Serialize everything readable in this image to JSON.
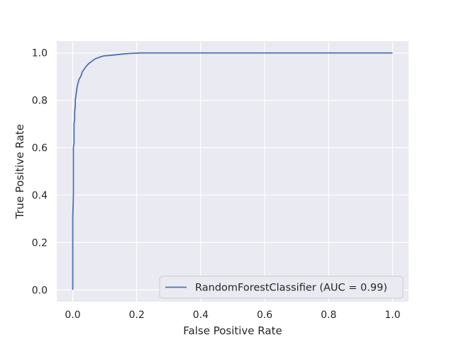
{
  "chart_data": {
    "type": "line",
    "xlabel": "False Positive Rate",
    "ylabel": "True Positive Rate",
    "xlim": [
      -0.05,
      1.05
    ],
    "ylim": [
      -0.05,
      1.05
    ],
    "x_ticks": [
      "0.0",
      "0.2",
      "0.4",
      "0.6",
      "0.8",
      "1.0"
    ],
    "y_ticks": [
      "0.0",
      "0.2",
      "0.4",
      "0.6",
      "0.8",
      "1.0"
    ],
    "grid": true,
    "legend_position": "lower-right",
    "background_color": "#eaeaf2",
    "grid_color": "#ffffff",
    "series": [
      {
        "name": "RandomForestClassifier (AUC = 0.99)",
        "color": "#4c72b0",
        "x": [
          0.0,
          0.0,
          0.002,
          0.002,
          0.004,
          0.004,
          0.006,
          0.006,
          0.008,
          0.008,
          0.01,
          0.012,
          0.014,
          0.016,
          0.02,
          0.025,
          0.03,
          0.035,
          0.04,
          0.05,
          0.06,
          0.07,
          0.08,
          0.09,
          0.1,
          0.12,
          0.14,
          0.16,
          0.18,
          0.2,
          0.21,
          0.3,
          0.5,
          0.7,
          0.9,
          1.0
        ],
        "y": [
          0.0,
          0.3,
          0.4,
          0.6,
          0.62,
          0.7,
          0.72,
          0.75,
          0.78,
          0.8,
          0.82,
          0.84,
          0.86,
          0.87,
          0.89,
          0.9,
          0.92,
          0.93,
          0.94,
          0.955,
          0.965,
          0.975,
          0.98,
          0.985,
          0.988,
          0.99,
          0.993,
          0.996,
          0.998,
          0.999,
          1.0,
          1.0,
          1.0,
          1.0,
          1.0,
          1.0
        ]
      }
    ]
  }
}
